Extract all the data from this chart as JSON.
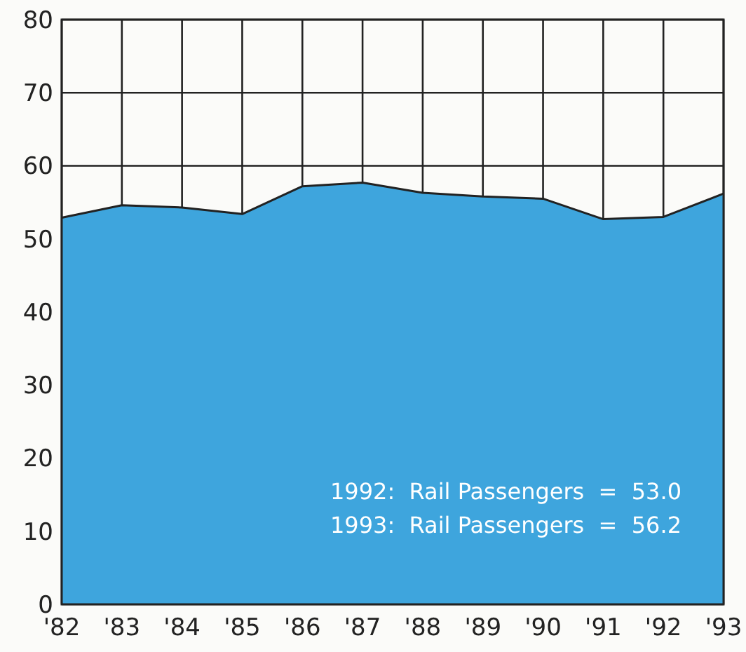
{
  "chart_data": {
    "type": "area",
    "categories": [
      "'82",
      "'83",
      "'84",
      "'85",
      "'86",
      "'87",
      "'88",
      "'89",
      "'90",
      "'91",
      "'92",
      "'93"
    ],
    "values": [
      52.9,
      54.6,
      54.3,
      53.4,
      57.2,
      57.7,
      56.3,
      55.8,
      55.5,
      52.7,
      53.0,
      56.2
    ],
    "color": "#3ea5dd",
    "ylim": [
      0,
      80
    ],
    "yticks": [
      0,
      10,
      20,
      30,
      40,
      50,
      60,
      70,
      80
    ],
    "grid": true,
    "annotations": [
      "1992:  Rail Passengers  =  53.0",
      "1993:  Rail Passengers  =  56.2"
    ]
  }
}
